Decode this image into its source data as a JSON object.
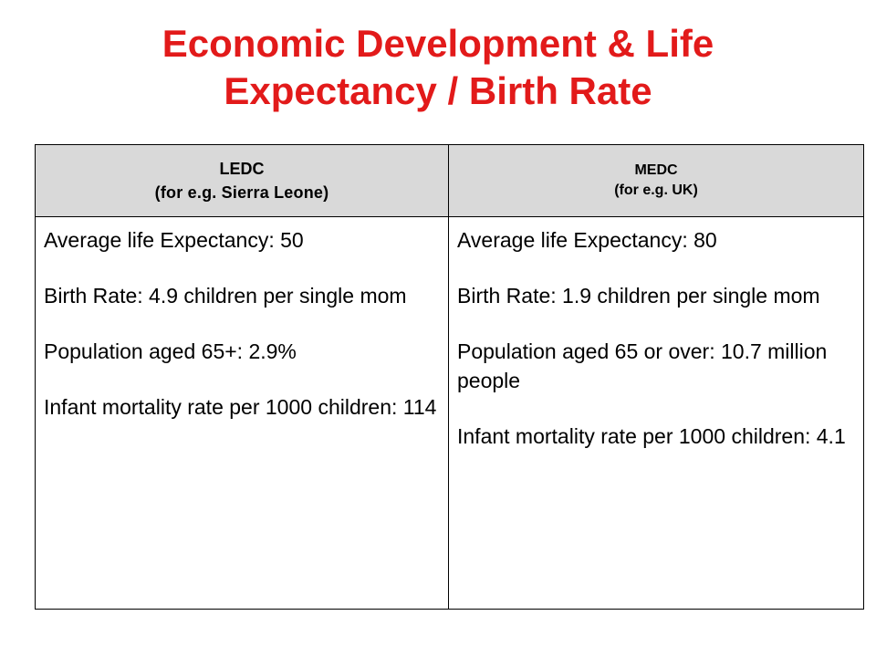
{
  "title": {
    "line1": "Economic Development & Life",
    "line2": "Expectancy / Birth Rate"
  },
  "table": {
    "columns": [
      {
        "heading": "LEDC",
        "subheading": "(for e.g. Sierra Leone)",
        "stats": [
          "Average life Expectancy: 50",
          "Birth Rate: 4.9 children per single mom",
          "Population aged 65+: 2.9%",
          "Infant mortality rate per 1000 children: 114"
        ]
      },
      {
        "heading": "MEDC",
        "subheading": "(for e.g. UK)",
        "stats": [
          "Average life Expectancy: 80",
          "Birth Rate: 1.9 children per single mom",
          "Population aged 65 or over: 10.7 million people",
          "Infant mortality rate per 1000 children: 4.1"
        ]
      }
    ]
  },
  "colors": {
    "title": "#e21a1a",
    "header_background": "#d9d9d9",
    "border": "#000000"
  }
}
